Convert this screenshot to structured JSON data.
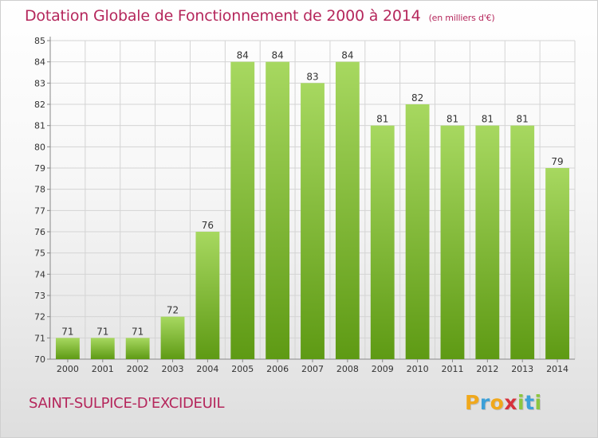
{
  "header": {
    "title": "Dotation Globale de Fonctionnement de 2000 à 2014",
    "subtitle": "(en milliers d'€)"
  },
  "footer": {
    "commune": "SAINT-SULPICE-D'EXCIDEUIL",
    "logo_text": "Proxiti",
    "logo_letters": [
      {
        "ch": "P",
        "color": "#f0a81c"
      },
      {
        "ch": "r",
        "color": "#3ca0d8"
      },
      {
        "ch": "o",
        "color": "#f0a81c"
      },
      {
        "ch": "x",
        "color": "#d6323c"
      },
      {
        "ch": "i",
        "color": "#8cc63f"
      },
      {
        "ch": "t",
        "color": "#3ca0d8"
      },
      {
        "ch": "i",
        "color": "#8cc63f"
      }
    ]
  },
  "chart_data": {
    "type": "bar",
    "categories": [
      "2000",
      "2001",
      "2002",
      "2003",
      "2004",
      "2005",
      "2006",
      "2007",
      "2008",
      "2009",
      "2010",
      "2011",
      "2012",
      "2013",
      "2014"
    ],
    "values": [
      71,
      71,
      71,
      72,
      76,
      84,
      84,
      83,
      84,
      81,
      82,
      81,
      81,
      81,
      79
    ],
    "title": "Dotation Globale de Fonctionnement de 2000 à 2014",
    "subtitle": "(en milliers d'€)",
    "xlabel": "",
    "ylabel": "",
    "ylim": [
      70,
      85
    ],
    "yticks": [
      70,
      71,
      72,
      73,
      74,
      75,
      76,
      77,
      78,
      79,
      80,
      81,
      82,
      83,
      84,
      85
    ],
    "grid": true,
    "data_labels": true,
    "colors": {
      "bar_light": "#a7d860",
      "bar_dark": "#5e9a14",
      "grid": "#d4d4d4",
      "text": "#333333"
    }
  }
}
